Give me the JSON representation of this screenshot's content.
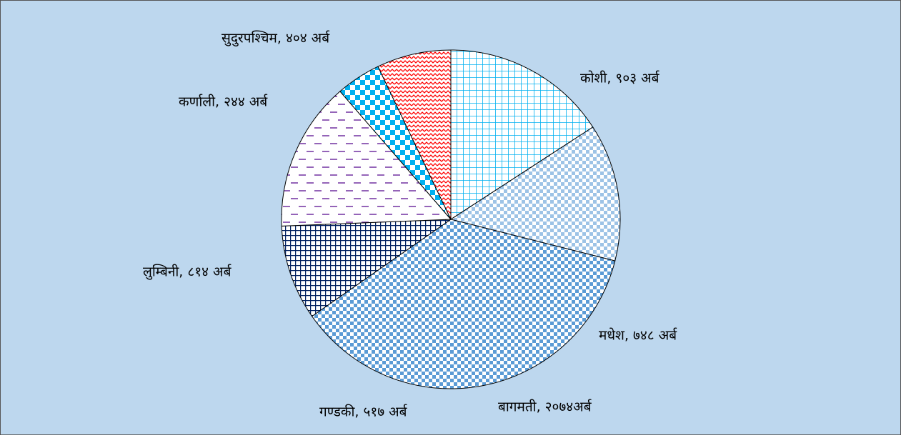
{
  "chart_data": {
    "type": "pie",
    "values": [
      903,
      748,
      2074,
      517,
      814,
      244,
      404
    ],
    "value_labels": [
      "कोशी, ९०३ अर्ब",
      "मधेश, ७४८ अर्ब",
      "बागमती, २०७४अर्ब",
      "गण्डकी, ५१७ अर्ब",
      "लुम्बिनी, ८१४ अर्ब",
      "कर्णाली, २४४ अर्ब",
      "सुदुरपश्चिम, ४०४ अर्ब"
    ],
    "colors": [
      "#00b0f0",
      "#9dc3e6",
      "#5b9bd5",
      "#002060",
      "#7030a0",
      "#00b0f0",
      "#ff0000"
    ]
  }
}
